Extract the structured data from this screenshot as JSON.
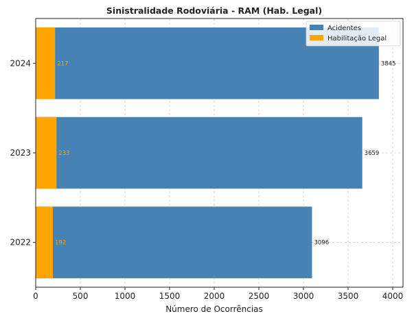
{
  "chart_data": {
    "type": "bar",
    "orientation": "horizontal",
    "stacked": false,
    "title": "Sinistralidade Rodoviária - RAM (Hab. Legal)",
    "xlabel": "Número de Ocorrências",
    "ylabel": "",
    "categories": [
      "2022",
      "2023",
      "2024"
    ],
    "series": [
      {
        "name": "Acidentes",
        "color": "#4682b4",
        "values": [
          3096,
          3659,
          3845
        ],
        "label_color": "#222222"
      },
      {
        "name": "Habilitação Legal",
        "color": "#ffa500",
        "values": [
          192,
          233,
          217
        ],
        "label_color": "#ffa500"
      }
    ],
    "xlim": [
      0,
      4000
    ],
    "xticks": [
      0,
      500,
      1000,
      1500,
      2000,
      2500,
      3000,
      3500,
      4000
    ],
    "grid": true,
    "legend_position": "top-right"
  }
}
